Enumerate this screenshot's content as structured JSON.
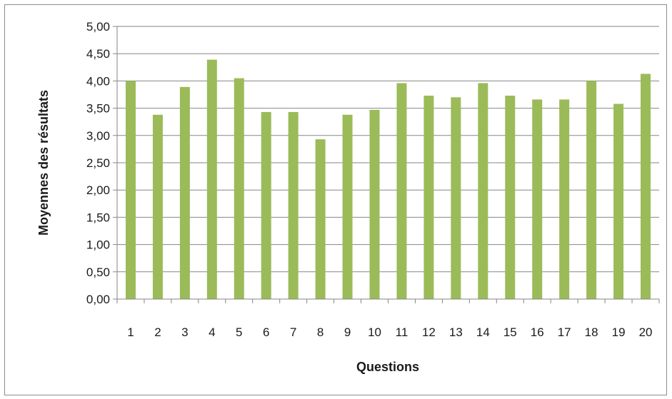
{
  "chart_data": {
    "type": "bar",
    "title": "",
    "xlabel": "Questions",
    "ylabel": "Moyennes des résultats",
    "categories": [
      "1",
      "2",
      "3",
      "4",
      "5",
      "6",
      "7",
      "8",
      "9",
      "10",
      "11",
      "12",
      "13",
      "14",
      "15",
      "16",
      "17",
      "18",
      "19",
      "20"
    ],
    "values": [
      4.0,
      3.38,
      3.89,
      4.39,
      4.05,
      3.43,
      3.43,
      2.93,
      3.38,
      3.47,
      3.96,
      3.73,
      3.7,
      3.96,
      3.73,
      3.66,
      3.66,
      4.0,
      3.58,
      4.13
    ],
    "ylim": [
      0,
      5
    ],
    "yticks": [
      "0,00",
      "0,50",
      "1,00",
      "1,50",
      "2,00",
      "2,50",
      "3,00",
      "3,50",
      "4,00",
      "4,50",
      "5,00"
    ],
    "grid": true,
    "legend": "none",
    "bar_color": "#9bbb59",
    "grid_color": "#868686"
  }
}
